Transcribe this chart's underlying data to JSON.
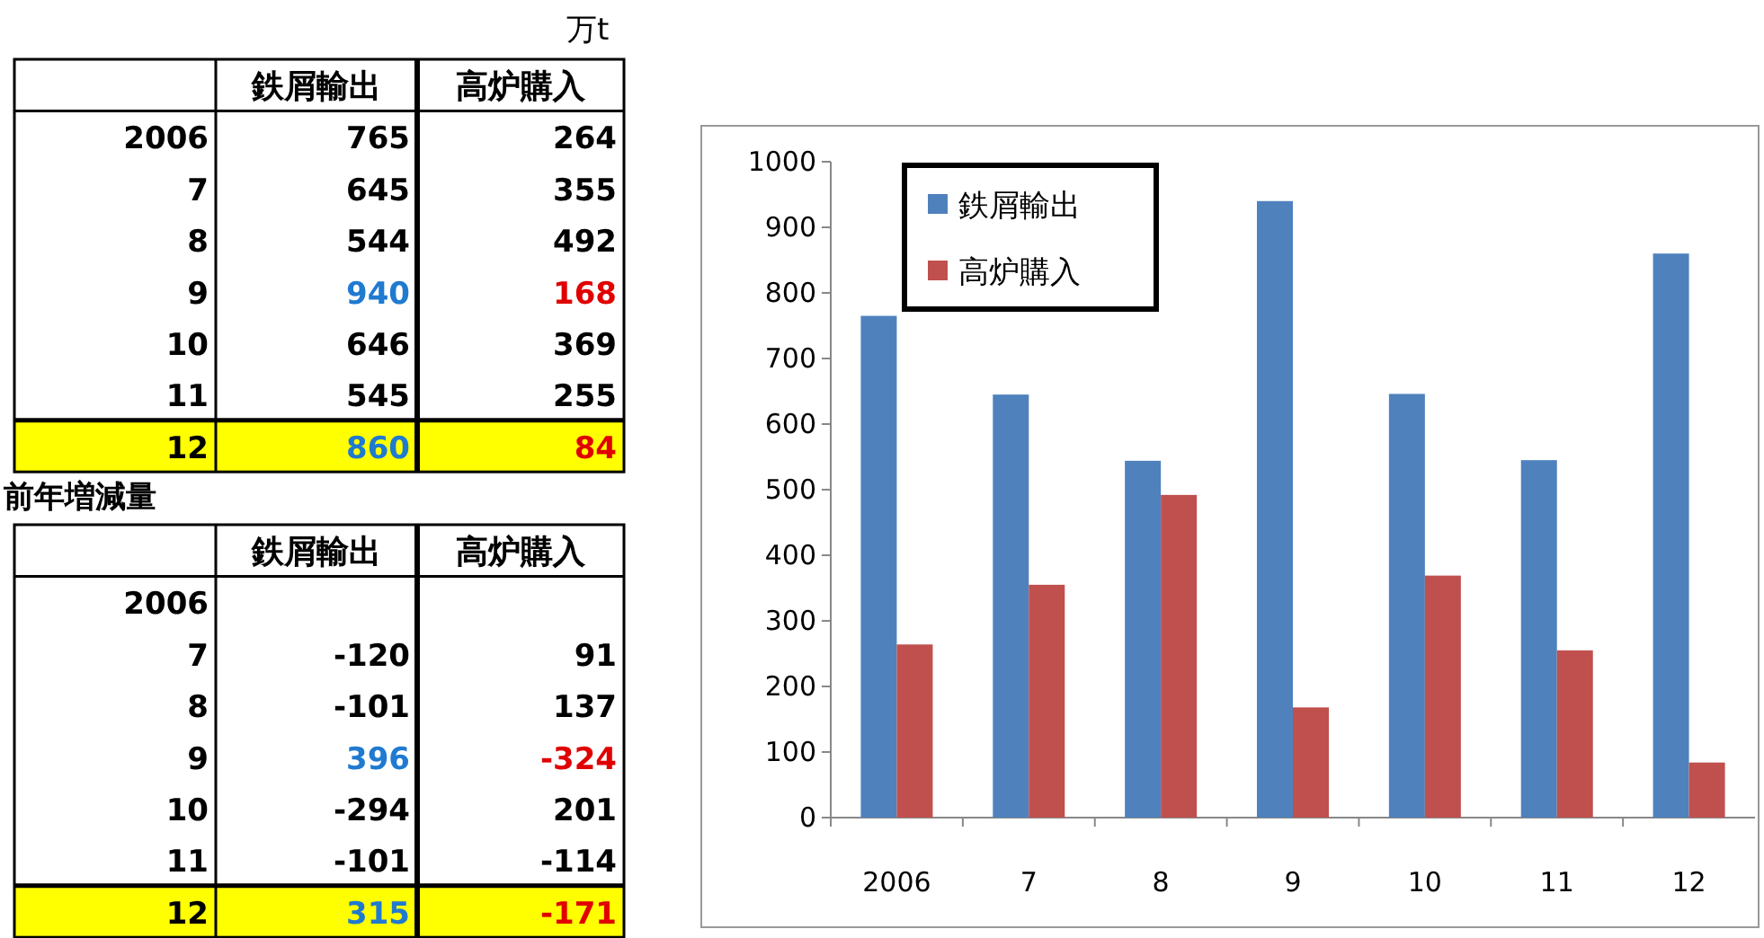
{
  "chart_data": {
    "type": "bar",
    "categories": [
      "2006",
      "7",
      "8",
      "9",
      "10",
      "11",
      "12"
    ],
    "series": [
      {
        "name": "鉄屑輸出",
        "color": "#4f81bd",
        "values": [
          765,
          645,
          544,
          940,
          646,
          545,
          860
        ]
      },
      {
        "name": "高炉購入",
        "color": "#c0504d",
        "values": [
          264,
          355,
          492,
          168,
          369,
          255,
          84
        ]
      }
    ],
    "ylim": [
      0,
      1000
    ],
    "yticks": [
      0,
      100,
      200,
      300,
      400,
      500,
      600,
      700,
      800,
      900,
      1000
    ],
    "grid": false,
    "legend": "top left",
    "annotations": [
      "万t",
      "前年増減量",
      "765",
      "264",
      "645",
      "355",
      "544",
      "492",
      "940",
      "168",
      "646",
      "369",
      "545",
      "255",
      "860",
      "84",
      "-120",
      "91",
      "-101",
      "137",
      "396",
      "-324",
      "-294",
      "201",
      "-101",
      "-114",
      "315",
      "-171"
    ]
  }
}
